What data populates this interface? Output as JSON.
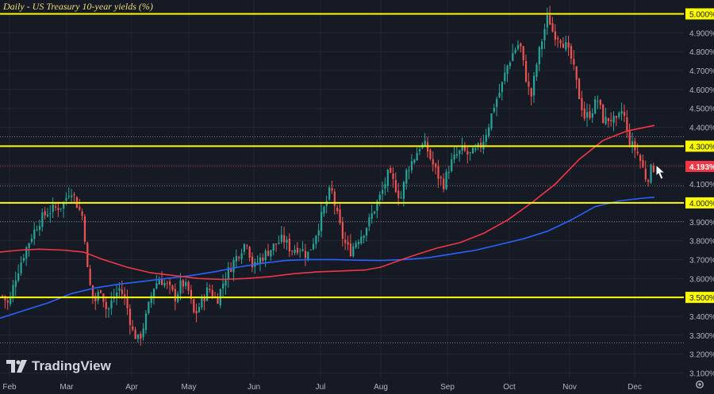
{
  "title": "Daily - US Treasury 10-year yields (%)",
  "brand": "TradingView",
  "colors": {
    "background": "#161a25",
    "candle_up": "#26a69a",
    "candle_down": "#ef5350",
    "ma_red": "#f23645",
    "ma_blue": "#2962ff",
    "level_line": "#ffff00",
    "grid": "#232734",
    "axis_text": "#b2b5be",
    "current_price_label": "#f23645"
  },
  "icons": [
    "tradingview-logo-icon",
    "cursor-arrow-icon",
    "settings-gear-icon"
  ],
  "chart_data": {
    "type": "candlestick",
    "ylim": [
      3.06,
      5.04
    ],
    "yticks": [
      "3.100%",
      "3.200%",
      "3.300%",
      "3.400%",
      "3.500%",
      "3.600%",
      "3.700%",
      "3.800%",
      "3.900%",
      "4.000%",
      "4.100%",
      "4.200%",
      "4.300%",
      "4.400%",
      "4.500%",
      "4.600%",
      "4.700%",
      "4.800%",
      "4.900%",
      "5.000%"
    ],
    "xticks": [
      "Feb",
      "Mar",
      "Apr",
      "May",
      "Jun",
      "Jul",
      "Aug",
      "Sep",
      "Oct",
      "Nov",
      "Dec"
    ],
    "current_price": {
      "value": 4.193,
      "label": "4.193%"
    },
    "horizontal_levels": [
      {
        "value": 5.0,
        "label": "5.000%"
      },
      {
        "value": 4.3,
        "label": "4.300%"
      },
      {
        "value": 4.0,
        "label": "4.000%"
      },
      {
        "value": 3.5,
        "label": "3.500%"
      }
    ],
    "dotted_levels": [
      4.35,
      4.09,
      3.9,
      3.26
    ],
    "moving_average_red_path": [
      [
        0,
        3.74
      ],
      [
        25,
        3.75
      ],
      [
        50,
        3.755
      ],
      [
        80,
        3.75
      ],
      [
        105,
        3.74
      ],
      [
        130,
        3.7
      ],
      [
        160,
        3.66
      ],
      [
        190,
        3.63
      ],
      [
        220,
        3.615
      ],
      [
        250,
        3.6
      ],
      [
        280,
        3.595
      ],
      [
        310,
        3.6
      ],
      [
        340,
        3.61
      ],
      [
        370,
        3.625
      ],
      [
        400,
        3.635
      ],
      [
        430,
        3.64
      ],
      [
        460,
        3.645
      ],
      [
        480,
        3.66
      ],
      [
        500,
        3.69
      ],
      [
        520,
        3.72
      ],
      [
        550,
        3.76
      ],
      [
        580,
        3.79
      ],
      [
        610,
        3.84
      ],
      [
        640,
        3.91
      ],
      [
        670,
        4.0
      ],
      [
        700,
        4.1
      ],
      [
        730,
        4.23
      ],
      [
        760,
        4.33
      ],
      [
        790,
        4.38
      ],
      [
        825,
        4.41
      ]
    ],
    "moving_average_blue_path": [
      [
        0,
        3.39
      ],
      [
        30,
        3.43
      ],
      [
        60,
        3.47
      ],
      [
        90,
        3.52
      ],
      [
        120,
        3.55
      ],
      [
        150,
        3.57
      ],
      [
        180,
        3.585
      ],
      [
        210,
        3.6
      ],
      [
        240,
        3.615
      ],
      [
        270,
        3.635
      ],
      [
        300,
        3.66
      ],
      [
        330,
        3.68
      ],
      [
        360,
        3.695
      ],
      [
        390,
        3.7
      ],
      [
        420,
        3.7
      ],
      [
        450,
        3.697
      ],
      [
        480,
        3.695
      ],
      [
        510,
        3.7
      ],
      [
        540,
        3.71
      ],
      [
        570,
        3.73
      ],
      [
        600,
        3.75
      ],
      [
        630,
        3.78
      ],
      [
        660,
        3.81
      ],
      [
        690,
        3.85
      ],
      [
        720,
        3.91
      ],
      [
        750,
        3.98
      ],
      [
        780,
        4.01
      ],
      [
        810,
        4.025
      ],
      [
        825,
        4.03
      ]
    ],
    "price_path": [
      [
        0,
        3.52
      ],
      [
        10,
        3.46
      ],
      [
        18,
        3.6
      ],
      [
        28,
        3.72
      ],
      [
        38,
        3.82
      ],
      [
        48,
        3.9
      ],
      [
        58,
        3.95
      ],
      [
        68,
        3.97
      ],
      [
        78,
        3.99
      ],
      [
        88,
        4.08
      ],
      [
        97,
        3.98
      ],
      [
        104,
        3.92
      ],
      [
        110,
        3.6
      ],
      [
        118,
        3.47
      ],
      [
        126,
        3.55
      ],
      [
        134,
        3.42
      ],
      [
        142,
        3.5
      ],
      [
        150,
        3.55
      ],
      [
        158,
        3.47
      ],
      [
        166,
        3.32
      ],
      [
        174,
        3.27
      ],
      [
        182,
        3.38
      ],
      [
        192,
        3.55
      ],
      [
        200,
        3.6
      ],
      [
        210,
        3.56
      ],
      [
        220,
        3.5
      ],
      [
        228,
        3.58
      ],
      [
        236,
        3.54
      ],
      [
        244,
        3.4
      ],
      [
        252,
        3.47
      ],
      [
        262,
        3.55
      ],
      [
        272,
        3.48
      ],
      [
        282,
        3.6
      ],
      [
        292,
        3.68
      ],
      [
        302,
        3.75
      ],
      [
        310,
        3.8
      ],
      [
        318,
        3.65
      ],
      [
        326,
        3.7
      ],
      [
        336,
        3.74
      ],
      [
        346,
        3.78
      ],
      [
        356,
        3.81
      ],
      [
        366,
        3.75
      ],
      [
        376,
        3.77
      ],
      [
        386,
        3.72
      ],
      [
        394,
        3.8
      ],
      [
        402,
        3.9
      ],
      [
        410,
        4.0
      ],
      [
        416,
        4.08
      ],
      [
        424,
        3.93
      ],
      [
        432,
        3.8
      ],
      [
        440,
        3.74
      ],
      [
        448,
        3.8
      ],
      [
        456,
        3.84
      ],
      [
        464,
        3.9
      ],
      [
        472,
        3.98
      ],
      [
        480,
        4.05
      ],
      [
        488,
        4.15
      ],
      [
        496,
        4.1
      ],
      [
        504,
        4.02
      ],
      [
        512,
        4.18
      ],
      [
        520,
        4.23
      ],
      [
        528,
        4.3
      ],
      [
        536,
        4.3
      ],
      [
        542,
        4.23
      ],
      [
        550,
        4.15
      ],
      [
        558,
        4.1
      ],
      [
        566,
        4.2
      ],
      [
        574,
        4.25
      ],
      [
        582,
        4.28
      ],
      [
        590,
        4.25
      ],
      [
        598,
        4.27
      ],
      [
        606,
        4.31
      ],
      [
        614,
        4.4
      ],
      [
        622,
        4.52
      ],
      [
        630,
        4.6
      ],
      [
        638,
        4.72
      ],
      [
        646,
        4.8
      ],
      [
        654,
        4.85
      ],
      [
        660,
        4.7
      ],
      [
        668,
        4.55
      ],
      [
        676,
        4.75
      ],
      [
        684,
        4.9
      ],
      [
        690,
        4.99
      ],
      [
        696,
        4.9
      ],
      [
        704,
        4.88
      ],
      [
        712,
        4.83
      ],
      [
        720,
        4.75
      ],
      [
        728,
        4.58
      ],
      [
        736,
        4.45
      ],
      [
        744,
        4.48
      ],
      [
        752,
        4.55
      ],
      [
        760,
        4.43
      ],
      [
        768,
        4.45
      ],
      [
        776,
        4.42
      ],
      [
        784,
        4.5
      ],
      [
        790,
        4.35
      ],
      [
        796,
        4.3
      ],
      [
        802,
        4.27
      ],
      [
        808,
        4.2
      ],
      [
        814,
        4.12
      ],
      [
        820,
        4.18
      ],
      [
        826,
        4.193
      ]
    ]
  }
}
